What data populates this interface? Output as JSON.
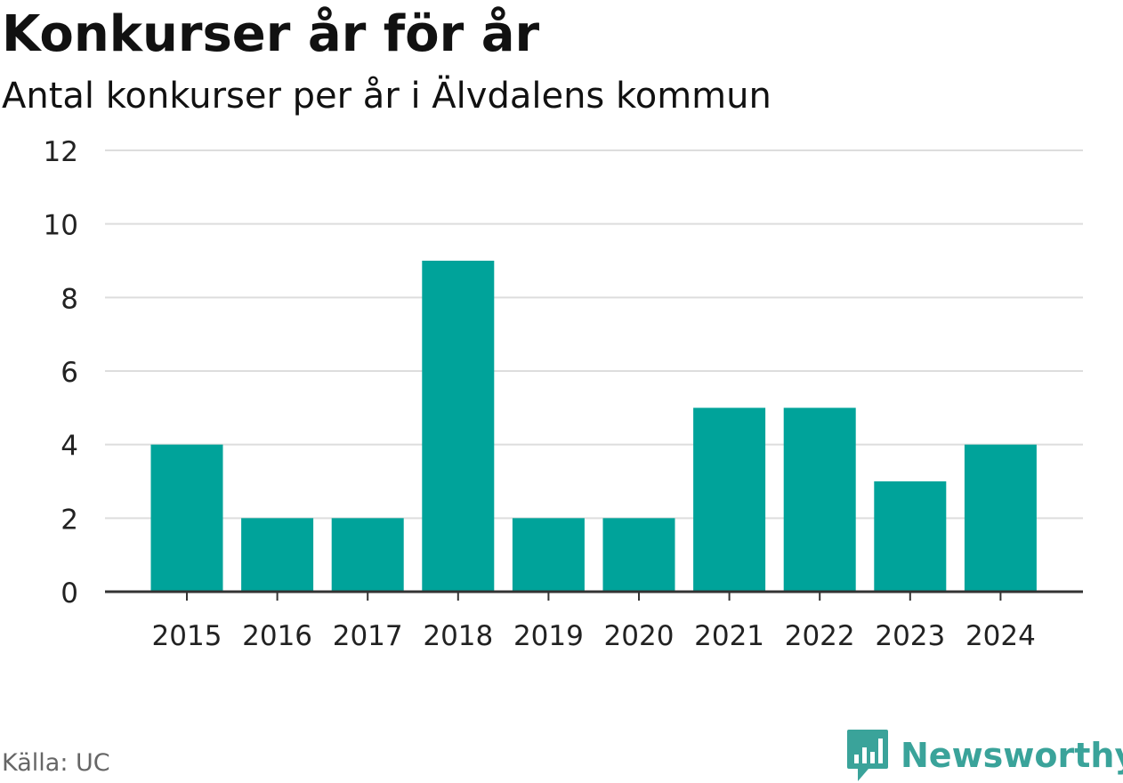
{
  "chart_data": {
    "type": "bar",
    "title": "Konkurser år för år",
    "subtitle": "Antal konkurser per år i Älvdalens kommun",
    "xlabel": "",
    "ylabel": "",
    "categories": [
      "2015",
      "2016",
      "2017",
      "2018",
      "2019",
      "2020",
      "2021",
      "2022",
      "2023",
      "2024"
    ],
    "values": [
      4,
      2,
      2,
      9,
      2,
      2,
      5,
      5,
      3,
      4
    ],
    "ylim": [
      0,
      12
    ],
    "yticks": [
      "0",
      "2",
      "4",
      "6",
      "8",
      "10",
      "12"
    ],
    "grid": true,
    "bar_color": "#00a39a",
    "grid_color": "#dddddd",
    "axis_color": "#333333"
  },
  "footer": {
    "source": "Källa: UC",
    "brand": "Newsworthy",
    "brand_color": "#3aa39a",
    "brand_icon": "bar-chart-chat-bubble-icon"
  }
}
